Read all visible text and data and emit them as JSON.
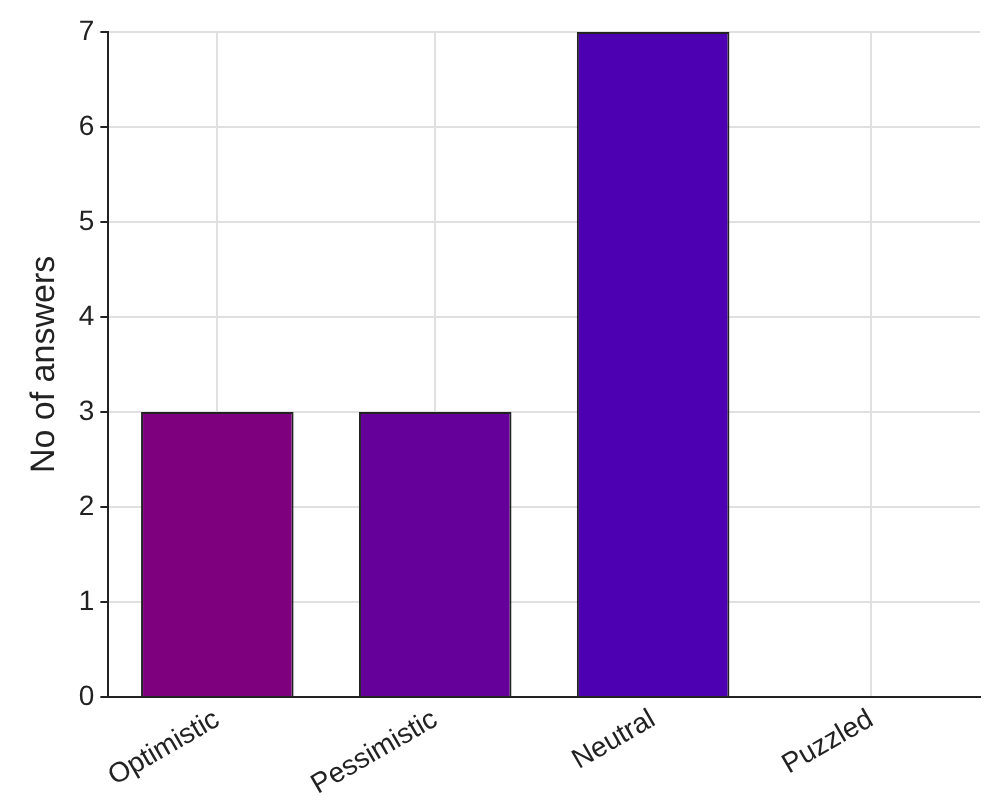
{
  "chart_data": {
    "type": "bar",
    "ylabel": "No of answers",
    "categories": [
      "Optimistic",
      "Pessimistic",
      "Neutral",
      "Puzzled"
    ],
    "values": [
      3,
      3,
      7,
      0
    ],
    "colors": [
      "#7f007f",
      "#66009a",
      "#4c00b2",
      "#3300cc"
    ],
    "ylim": [
      0,
      7
    ],
    "yticks": [
      0,
      1,
      2,
      3,
      4,
      5,
      6,
      7
    ],
    "grid": true
  }
}
